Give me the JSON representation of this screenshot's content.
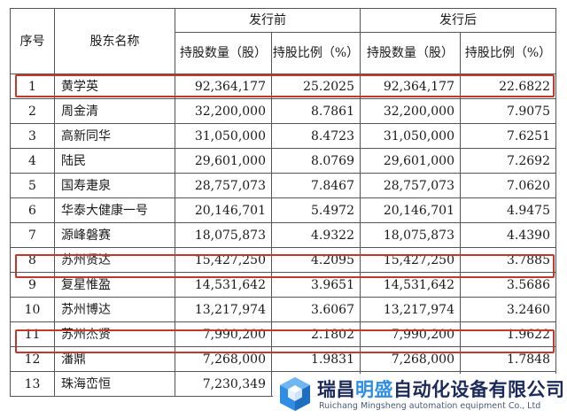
{
  "table": {
    "header": {
      "seq": "序号",
      "name": "股东名称",
      "before": "发行前",
      "after": "发行后",
      "shares": "持股数量（股）",
      "ratio": "持股比例（%）"
    },
    "rows": [
      {
        "seq": "1",
        "name": "黄学英",
        "before_shares": "92,364,177",
        "before_ratio": "25.2025",
        "after_shares": "92,364,177",
        "after_ratio": "22.6822"
      },
      {
        "seq": "2",
        "name": "周金清",
        "before_shares": "32,200,000",
        "before_ratio": "8.7861",
        "after_shares": "32,200,000",
        "after_ratio": "7.9075"
      },
      {
        "seq": "3",
        "name": "高新同华",
        "before_shares": "31,050,000",
        "before_ratio": "8.4723",
        "after_shares": "31,050,000",
        "after_ratio": "7.6251"
      },
      {
        "seq": "4",
        "name": "陆民",
        "before_shares": "29,601,000",
        "before_ratio": "8.0769",
        "after_shares": "29,601,000",
        "after_ratio": "7.2692"
      },
      {
        "seq": "5",
        "name": "国寿疌泉",
        "before_shares": "28,757,073",
        "before_ratio": "7.8467",
        "after_shares": "28,757,073",
        "after_ratio": "7.0620"
      },
      {
        "seq": "6",
        "name": "华泰大健康一号",
        "before_shares": "20,146,701",
        "before_ratio": "5.4972",
        "after_shares": "20,146,701",
        "after_ratio": "4.9475"
      },
      {
        "seq": "7",
        "name": "源峰磐赛",
        "before_shares": "18,075,873",
        "before_ratio": "4.9322",
        "after_shares": "18,075,873",
        "after_ratio": "4.4390"
      },
      {
        "seq": "8",
        "name": "苏州贤达",
        "before_shares": "15,427,250",
        "before_ratio": "4.2095",
        "after_shares": "15,427,250",
        "after_ratio": "3.7885"
      },
      {
        "seq": "9",
        "name": "复星惟盈",
        "before_shares": "14,531,642",
        "before_ratio": "3.9651",
        "after_shares": "14,531,642",
        "after_ratio": "3.5686"
      },
      {
        "seq": "10",
        "name": "苏州博达",
        "before_shares": "13,217,974",
        "before_ratio": "3.6067",
        "after_shares": "13,217,974",
        "after_ratio": "3.2460"
      },
      {
        "seq": "11",
        "name": "苏州杰贤",
        "before_shares": "7,990,200",
        "before_ratio": "2.1802",
        "after_shares": "7,990,200",
        "after_ratio": "1.9622"
      },
      {
        "seq": "12",
        "name": "潘鼎",
        "before_shares": "7,268,000",
        "before_ratio": "1.9831",
        "after_shares": "7,268,000",
        "after_ratio": "1.7848"
      },
      {
        "seq": "13",
        "name": "珠海峦恒",
        "before_shares": "7,230,349",
        "before_ratio": "",
        "after_shares": "",
        "after_ratio": ""
      }
    ],
    "highlight_color": "#c0392b"
  },
  "watermark": {
    "company_cn_a": "瑞昌",
    "company_cn_b": "明盛",
    "company_cn_c": "自动化设备有限公司",
    "company_en": "Ruichang Mingsheng automation equipment Co., Ltd",
    "logo_icon": "cube-logo-icon",
    "brand_color": "#2f8de4"
  }
}
